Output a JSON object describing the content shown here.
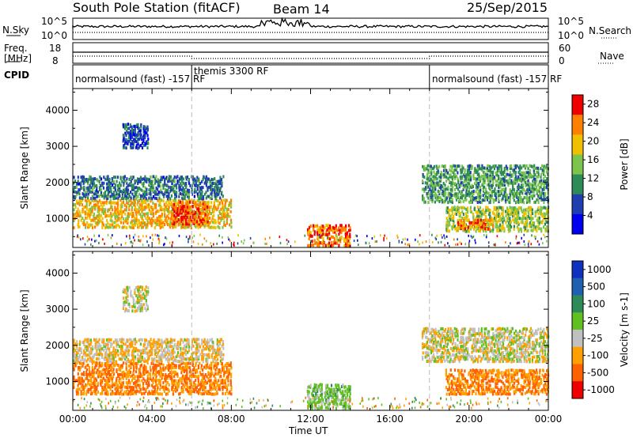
{
  "header": {
    "title": "South Pole Station (fitACF)",
    "beam": "Beam 14",
    "date": "25/Sep/2015"
  },
  "top_panels": {
    "nsky_label": "N.Sky",
    "nsky_ticks": [
      "10^5",
      "10^0"
    ],
    "nsearch_label": "N.Search",
    "nsearch_ticks": [
      "10^5",
      "10^0"
    ],
    "freq_label_line1": "Freq.",
    "freq_label_line2": "[MHz]",
    "freq_ticks": [
      "18",
      "8"
    ],
    "nave_label": "Nave",
    "nave_ticks": [
      "60",
      "0"
    ],
    "cpid_label": "CPID",
    "cpid_segments": [
      {
        "label": "normalsound (fast) -157 RF",
        "start_hour": 0
      },
      {
        "label": "themis 3300 RF",
        "start_hour": 6
      },
      {
        "label": "normalsound (fast) -157 RF",
        "start_hour": 18
      }
    ]
  },
  "x_axis": {
    "label": "Time UT",
    "ticks": [
      "00:00",
      "04:00",
      "08:00",
      "12:00",
      "16:00",
      "20:00",
      "00:00"
    ]
  },
  "colors": {
    "power": [
      "#0000ee",
      "#1f3fb0",
      "#2e8b57",
      "#7cc44b",
      "#f0c000",
      "#ff8000",
      "#ee0000"
    ],
    "velocity": [
      "#ee0000",
      "#ff6000",
      "#ffa000",
      "#c0c0c0",
      "#60c020",
      "#2e8b57",
      "#2060b0",
      "#1030c0"
    ]
  },
  "chart_data": [
    {
      "type": "heatmap",
      "ylabel": "Slant Range [km]",
      "y_ticks": [
        "1000",
        "2000",
        "3000",
        "4000"
      ],
      "ylim": [
        200,
        4600
      ],
      "xlim_hours": [
        0,
        24
      ],
      "colorbar": {
        "label": "Power [dB]",
        "ticks": [
          "4",
          "8",
          "12",
          "16",
          "20",
          "24",
          "28"
        ],
        "range": [
          0,
          30
        ]
      },
      "blobs": [
        {
          "t0": 0.0,
          "t1": 8.0,
          "r0": 700,
          "r1": 1500,
          "v": 20
        },
        {
          "t0": 0.0,
          "t1": 7.6,
          "r0": 1500,
          "r1": 2150,
          "v": 9
        },
        {
          "t0": 2.5,
          "t1": 3.8,
          "r0": 2900,
          "r1": 3600,
          "v": 6
        },
        {
          "t0": 5.0,
          "t1": 6.8,
          "r0": 800,
          "r1": 1450,
          "v": 26
        },
        {
          "t0": 11.8,
          "t1": 14.0,
          "r0": 200,
          "r1": 800,
          "v": 24
        },
        {
          "t0": 17.6,
          "t1": 24.0,
          "r0": 1400,
          "r1": 2450,
          "v": 12
        },
        {
          "t0": 18.8,
          "t1": 24.0,
          "r0": 600,
          "r1": 1300,
          "v": 16
        },
        {
          "t0": 19.4,
          "t1": 21.2,
          "r0": 650,
          "r1": 950,
          "v": 24
        }
      ]
    },
    {
      "type": "heatmap",
      "ylabel": "Slant Range [km]",
      "y_ticks": [
        "1000",
        "2000",
        "3000",
        "4000"
      ],
      "ylim": [
        200,
        4600
      ],
      "xlim_hours": [
        0,
        24
      ],
      "colorbar": {
        "label": "Velocity [m s-1]",
        "ticks": [
          "1000",
          "500",
          "100",
          "25",
          "-25",
          "-100",
          "-500",
          "-1000"
        ]
      },
      "blobs": [
        {
          "t0": 0.0,
          "t1": 8.0,
          "r0": 600,
          "r1": 1500,
          "v": -100
        },
        {
          "t0": 0.0,
          "t1": 7.6,
          "r0": 1500,
          "r1": 2150,
          "v": -25
        },
        {
          "t0": 2.5,
          "t1": 3.8,
          "r0": 2900,
          "r1": 3600,
          "v": 0
        },
        {
          "t0": 11.8,
          "t1": 14.0,
          "r0": 200,
          "r1": 900,
          "v": 50
        },
        {
          "t0": 17.6,
          "t1": 24.0,
          "r0": 1500,
          "r1": 2450,
          "v": 0
        },
        {
          "t0": 18.8,
          "t1": 24.0,
          "r0": 600,
          "r1": 1300,
          "v": -100
        }
      ]
    }
  ]
}
